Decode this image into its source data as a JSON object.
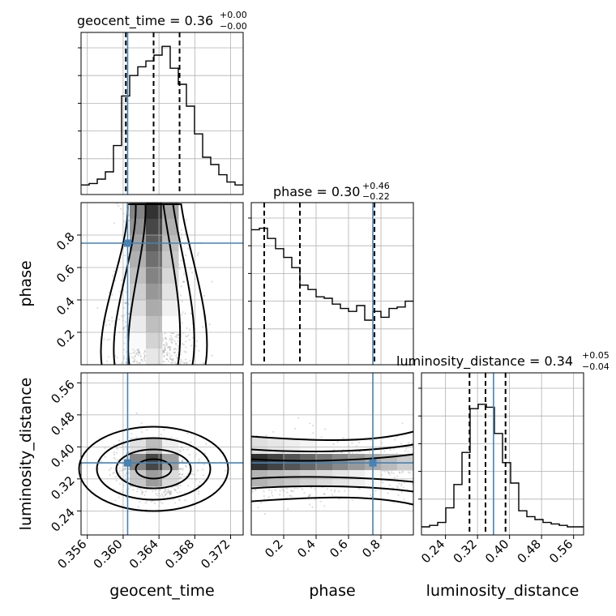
{
  "chart_data": {
    "type": "corner",
    "parameters": [
      "geocent_time",
      "phase",
      "luminosity_distance"
    ],
    "truths": {
      "geocent_time": 0.3605,
      "phase": 0.75,
      "luminosity_distance": 0.36
    },
    "truth_color": "#4682b4",
    "titles": [
      {
        "param": "geocent_time",
        "text": "geocent_time = 0.36",
        "sup": "+0.00",
        "sub": "−0.00"
      },
      {
        "param": "phase",
        "text": "phase = 0.30",
        "sup": "+0.46",
        "sub": "−0.22"
      },
      {
        "param": "luminosity_distance",
        "text": "luminosity_distance = 0.34",
        "sup": "+0.05",
        "sub": "−0.04"
      }
    ],
    "ranges": {
      "geocent_time": [
        0.3553,
        0.3734
      ],
      "phase": [
        0.0,
        1.0
      ],
      "luminosity_distance": [
        0.18,
        0.585
      ]
    },
    "ticks": {
      "geocent_time": [
        "0.356",
        "0.360",
        "0.364",
        "0.368",
        "0.372"
      ],
      "phase": [
        "0.2",
        "0.4",
        "0.6",
        "0.8"
      ],
      "luminosity_distance": [
        "0.24",
        "0.32",
        "0.40",
        "0.48",
        "0.56"
      ]
    },
    "quantiles": {
      "geocent_time": [
        0.3603,
        0.3634,
        0.3663
      ],
      "phase": [
        0.08,
        0.3,
        0.76
      ],
      "luminosity_distance": [
        0.3,
        0.34,
        0.39
      ]
    },
    "histograms": {
      "geocent_time": {
        "edges_start": 0.3553,
        "bin_width": 0.000905,
        "counts": [
          0.01,
          0.02,
          0.05,
          0.1,
          0.28,
          0.62,
          0.76,
          0.82,
          0.86,
          0.9,
          0.96,
          0.81,
          0.7,
          0.55,
          0.36,
          0.2,
          0.15,
          0.08,
          0.03,
          0.01
        ]
      },
      "phase": {
        "edges_start": 0.0,
        "bin_width": 0.05,
        "counts": [
          0.87,
          0.88,
          0.81,
          0.74,
          0.68,
          0.61,
          0.49,
          0.46,
          0.41,
          0.4,
          0.36,
          0.33,
          0.31,
          0.35,
          0.25,
          0.31,
          0.27,
          0.33,
          0.34,
          0.38
        ]
      },
      "luminosity_distance": {
        "edges_start": 0.18,
        "bin_width": 0.02025,
        "counts": [
          0.0,
          0.01,
          0.03,
          0.13,
          0.29,
          0.51,
          0.81,
          0.84,
          0.82,
          0.64,
          0.44,
          0.3,
          0.11,
          0.07,
          0.05,
          0.03,
          0.02,
          0.01,
          0.0,
          0.0
        ]
      }
    },
    "hist_ylim": [
      0,
      1.0
    ],
    "grid": true
  }
}
